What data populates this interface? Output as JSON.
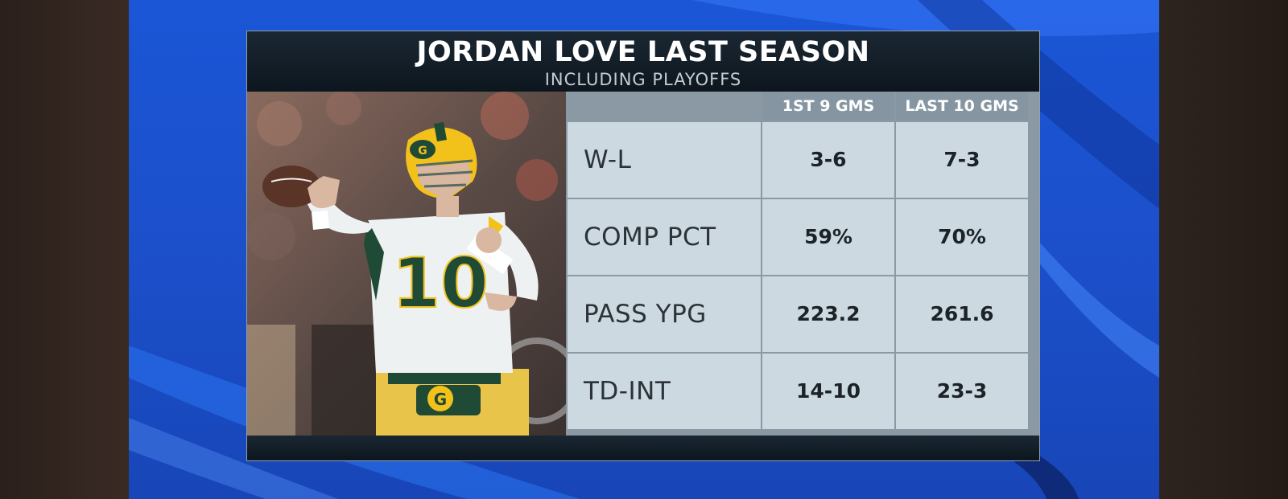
{
  "graphic": {
    "title": "JORDAN LOVE LAST SEASON",
    "subtitle": "INCLUDING PLAYOFFS",
    "columns": [
      "1ST 9 GMS",
      "LAST 10 GMS"
    ],
    "rows": [
      {
        "label": "W-L",
        "values": [
          "3-6",
          "7-3"
        ]
      },
      {
        "label": "COMP PCT",
        "values": [
          "59%",
          "70%"
        ]
      },
      {
        "label": "PASS YPG",
        "values": [
          "223.2",
          "261.6"
        ]
      },
      {
        "label": "TD-INT",
        "values": [
          "14-10",
          "23-3"
        ]
      }
    ],
    "jersey_number": "10"
  },
  "colors": {
    "background_blue": "#1a56d6",
    "title_bar": "#0d161e",
    "cell_bg": "#cdd9e1",
    "header_bg": "#8596a2",
    "packers_green": "#1f4a35",
    "packers_gold": "#f2c21b"
  }
}
